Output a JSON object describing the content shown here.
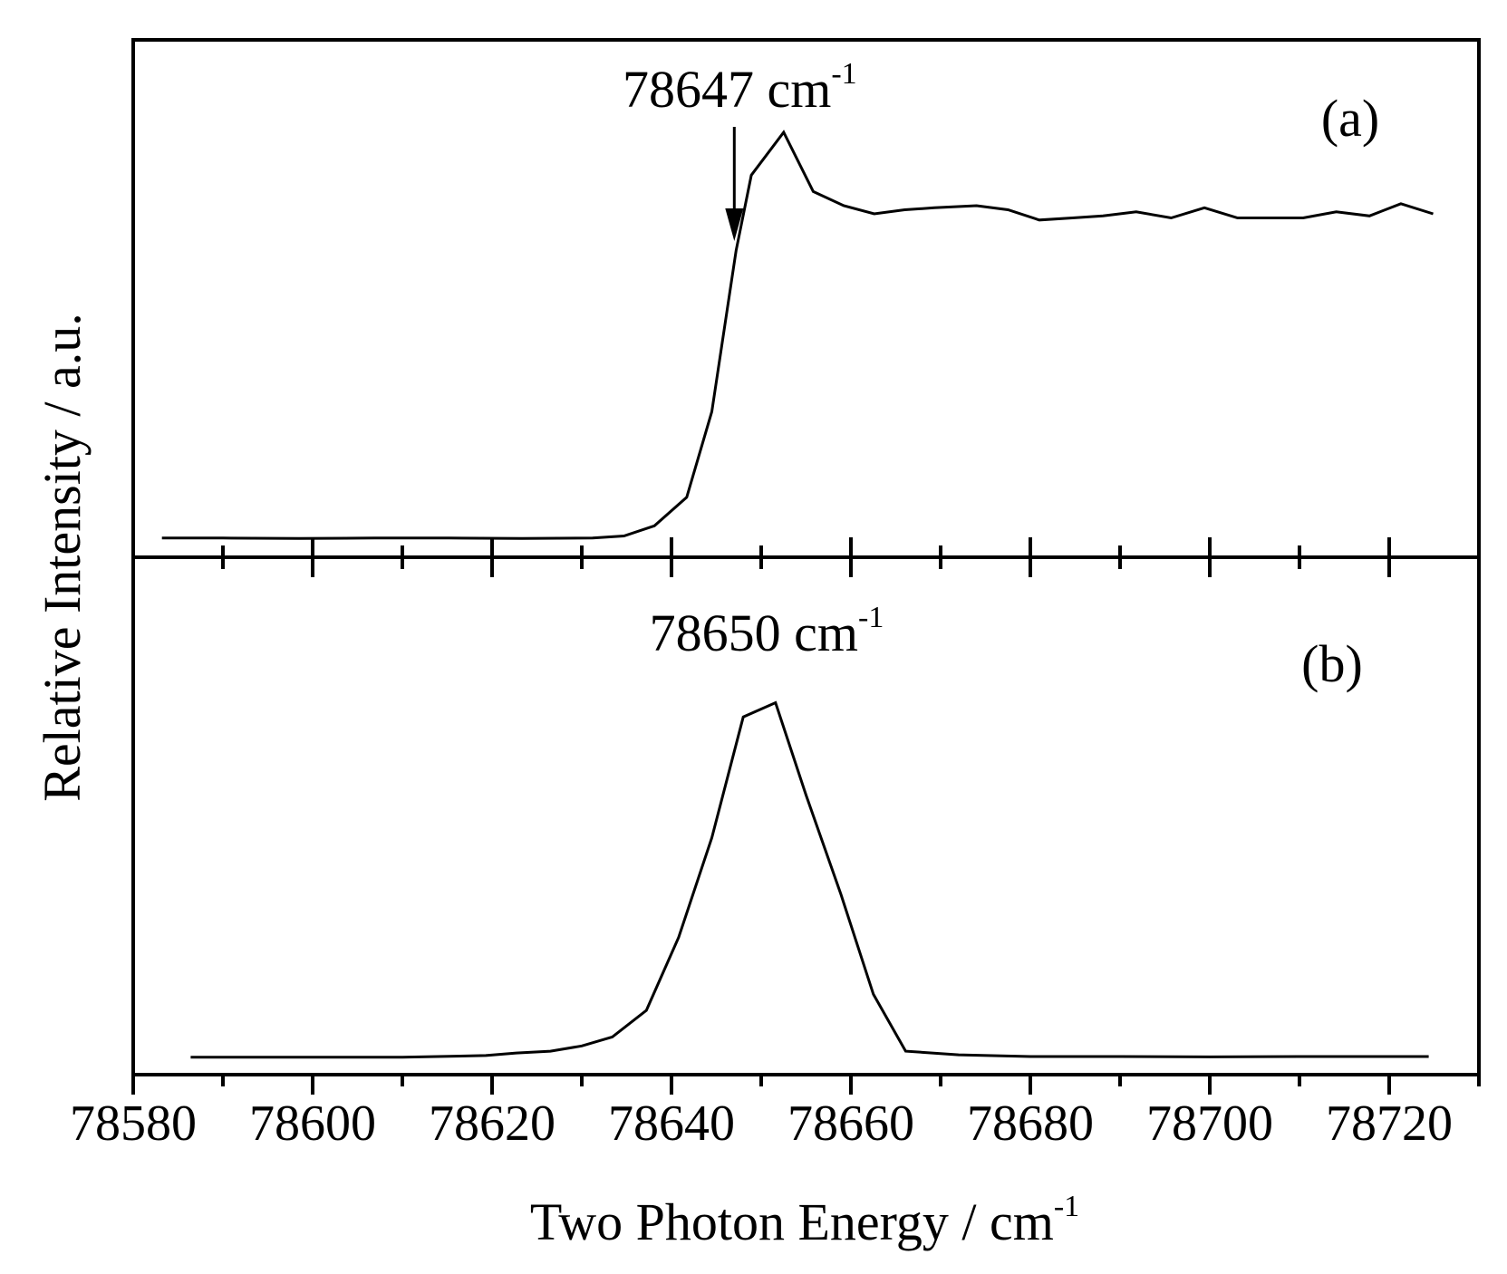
{
  "chart_data": {
    "type": "line",
    "xlabel_main": "Two Photon Energy / cm",
    "xlabel_sup": "-1",
    "ylabel": "Relative Intensity / a.u.",
    "xlim": [
      78580,
      78730
    ],
    "x_ticks": [
      78580,
      78600,
      78620,
      78640,
      78660,
      78680,
      78700,
      78720
    ],
    "x_tick_labels": [
      "78580",
      "78600",
      "78620",
      "78640",
      "78660",
      "78680",
      "78700",
      "78720"
    ],
    "panels": [
      {
        "label": "(a)",
        "ylim": [
          0,
          1.08
        ],
        "annotation": {
          "text": "78647 cm",
          "sup": "-1",
          "x": 78647,
          "arrow": true
        },
        "series": [
          {
            "x": [
              78583.2,
              78590,
              78598.5,
              78606.9,
              78615.2,
              78623.3,
              78631.2,
              78634.7,
              78638.1,
              78641.7,
              78644.5,
              78647.2,
              78648.9,
              78652.5,
              78655.8,
              78659.2,
              78662.6,
              78666.0,
              78669.3,
              78674.0,
              78677.5,
              78681.0,
              78684.7,
              78688.1,
              78691.8,
              78695.7,
              78699.4,
              78703.1,
              78706.7,
              78710.4,
              78714.1,
              78717.8,
              78721.3,
              78724.9
            ],
            "y": [
              0.005,
              0.005,
              0.004,
              0.005,
              0.005,
              0.004,
              0.005,
              0.01,
              0.035,
              0.105,
              0.315,
              0.71,
              0.895,
              1.0,
              0.855,
              0.82,
              0.8,
              0.81,
              0.815,
              0.82,
              0.81,
              0.785,
              0.79,
              0.795,
              0.805,
              0.79,
              0.815,
              0.79,
              0.79,
              0.79,
              0.805,
              0.795,
              0.825,
              0.8
            ]
          }
        ]
      },
      {
        "label": "(b)",
        "ylim": [
          0,
          1.07
        ],
        "annotation": {
          "text": "78650 cm",
          "sup": "-1",
          "x": 78650,
          "arrow": false
        },
        "series": [
          {
            "x": [
              78586.4,
              78594,
              78602,
              78610,
              78619.3,
              78622.7,
              78626.5,
              78630.0,
              78633.4,
              78637.2,
              78640.8,
              78644.5,
              78648.0,
              78651.6,
              78655.0,
              78658.9,
              78662.5,
              78666.1,
              78672,
              78680,
              78690,
              78700,
              78710,
              78720,
              78724.4
            ],
            "y": [
              0.003,
              0.003,
              0.003,
              0.003,
              0.008,
              0.015,
              0.02,
              0.035,
              0.06,
              0.135,
              0.34,
              0.62,
              0.96,
              1.0,
              0.74,
              0.46,
              0.18,
              0.02,
              0.01,
              0.005,
              0.005,
              0.004,
              0.005,
              0.005,
              0.005
            ]
          }
        ]
      }
    ]
  }
}
